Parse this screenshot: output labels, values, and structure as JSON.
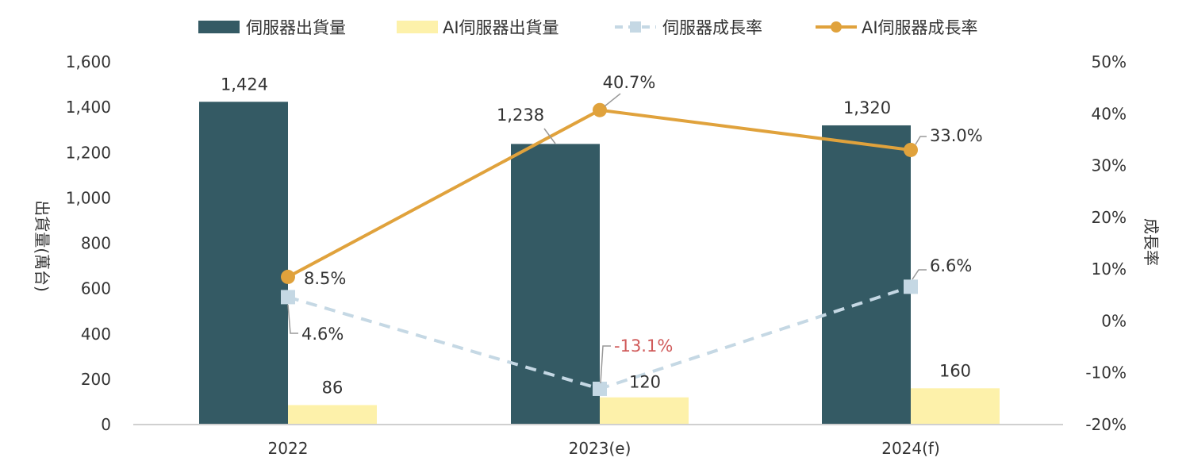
{
  "chart_data": {
    "type": "bar",
    "categories": [
      "2022",
      "2023(e)",
      "2024(f)"
    ],
    "series": [
      {
        "name": "伺服器出貨量",
        "kind": "bar",
        "axis": "left",
        "values": [
          1424,
          1238,
          1320
        ],
        "labels": [
          "1,424",
          "1,238",
          "1,320"
        ],
        "color": "#345a64"
      },
      {
        "name": "AI伺服器出貨量",
        "kind": "bar",
        "axis": "left",
        "values": [
          86,
          120,
          160
        ],
        "labels": [
          "86",
          "120",
          "160"
        ],
        "color": "#fdf1aa"
      },
      {
        "name": "伺服器成長率",
        "kind": "line",
        "style": "dashed",
        "marker": "square",
        "axis": "right",
        "values": [
          4.6,
          -13.1,
          6.6
        ],
        "labels": [
          "4.6%",
          "-13.1%",
          "6.6%"
        ],
        "color": "#c5d8e4",
        "label_colors": [
          "#333333",
          "#d05a5a",
          "#333333"
        ]
      },
      {
        "name": "AI伺服器成長率",
        "kind": "line",
        "style": "solid",
        "marker": "circle",
        "axis": "right",
        "values": [
          8.5,
          40.7,
          33.0
        ],
        "labels": [
          "8.5%",
          "40.7%",
          "33.0%"
        ],
        "color": "#e0a23c"
      }
    ],
    "y_left": {
      "label": "出貨量(萬台)",
      "min": 0,
      "max": 1600,
      "ticks": [
        "0",
        "200",
        "400",
        "600",
        "800",
        "1,000",
        "1,200",
        "1,400",
        "1,600"
      ]
    },
    "y_right": {
      "label": "成長率",
      "min": -20,
      "max": 50,
      "ticks": [
        "-20%",
        "-10%",
        "0%",
        "10%",
        "20%",
        "30%",
        "40%",
        "50%"
      ]
    },
    "legend": {
      "position": "top"
    },
    "grid": false
  }
}
